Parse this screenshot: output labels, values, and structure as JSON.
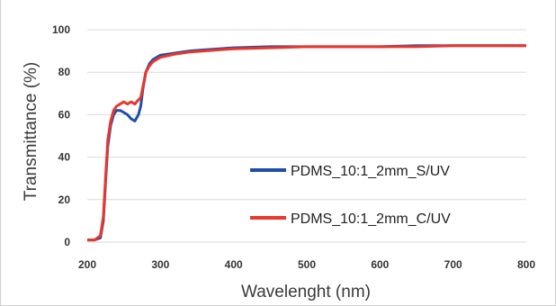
{
  "chart_data": {
    "type": "line",
    "title": "",
    "xlabel": "Wavelenght (nm)",
    "ylabel": "Transmittance (%)",
    "xlim": [
      200,
      800
    ],
    "ylim": [
      0,
      100
    ],
    "x_ticks": [
      200,
      300,
      400,
      500,
      600,
      700,
      800
    ],
    "y_ticks": [
      0,
      20,
      40,
      60,
      80,
      100
    ],
    "grid": "horizontal",
    "legend_position": "lower-right",
    "series": [
      {
        "name": "PDMS_10:1_2mm_S/UV",
        "color": "#1f4ea8",
        "x": [
          200,
          210,
          218,
          222,
          225,
          228,
          232,
          236,
          240,
          245,
          250,
          255,
          260,
          265,
          270,
          273,
          276,
          280,
          285,
          290,
          300,
          320,
          340,
          360,
          380,
          400,
          450,
          500,
          550,
          600,
          650,
          700,
          750,
          800
        ],
        "y": [
          1,
          1,
          2,
          10,
          28,
          45,
          55,
          60,
          62,
          62,
          61,
          60,
          58,
          57,
          60,
          64,
          72,
          80,
          84,
          86,
          88,
          89,
          90,
          90.5,
          91,
          91.5,
          92,
          92,
          92,
          92,
          92.5,
          92.5,
          92.5,
          92.5
        ]
      },
      {
        "name": "PDMS_10:1_2mm_C/UV",
        "color": "#e8372b",
        "x": [
          200,
          210,
          218,
          222,
          225,
          228,
          232,
          236,
          240,
          245,
          250,
          255,
          260,
          265,
          270,
          273,
          276,
          280,
          285,
          290,
          300,
          320,
          340,
          360,
          380,
          400,
          450,
          500,
          550,
          600,
          650,
          700,
          750,
          800
        ],
        "y": [
          1,
          1,
          3,
          12,
          30,
          48,
          57,
          62,
          64,
          65,
          66,
          65,
          66,
          65,
          67,
          68,
          73,
          80,
          83,
          85,
          87,
          88.5,
          89.5,
          90,
          90.5,
          91,
          91.5,
          92,
          92,
          92,
          92,
          92.5,
          92.5,
          92.5
        ]
      }
    ]
  }
}
